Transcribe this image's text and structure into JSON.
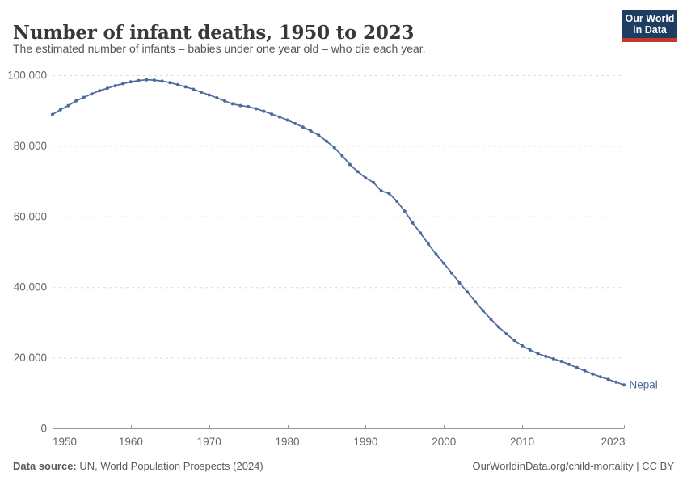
{
  "header": {
    "title": "Number of infant deaths, 1950 to 2023",
    "subtitle": "The estimated number of infants – babies under one year old – who die each year.",
    "logo": {
      "line1": "Our World",
      "line2": "in Data",
      "bg_color": "#1d3d63",
      "accent_color": "#c0392b"
    }
  },
  "footer": {
    "source_label": "Data source:",
    "source_text": " UN, World Population Prospects (2024)",
    "credit": "OurWorldinData.org/child-mortality | CC BY"
  },
  "chart_data": {
    "type": "line",
    "title": "Number of infant deaths, 1950 to 2023",
    "xlabel": "",
    "ylabel": "",
    "xlim": [
      1950,
      2024.5
    ],
    "ylim": [
      0,
      100000
    ],
    "grid": "horizontal-dashed",
    "legend": "end-of-line-label",
    "x_ticks": [
      1950,
      1960,
      1970,
      1980,
      1990,
      2000,
      2010,
      2023
    ],
    "y_ticks": [
      0,
      20000,
      40000,
      60000,
      80000,
      100000
    ],
    "y_tick_labels": [
      "0",
      "20,000",
      "40,000",
      "60,000",
      "80,000",
      "100,000"
    ],
    "series": [
      {
        "name": "Nepal",
        "color": "#4c6a9c",
        "years": [
          1950,
          1951,
          1952,
          1953,
          1954,
          1955,
          1956,
          1957,
          1958,
          1959,
          1960,
          1961,
          1962,
          1963,
          1964,
          1965,
          1966,
          1967,
          1968,
          1969,
          1970,
          1971,
          1972,
          1973,
          1974,
          1975,
          1976,
          1977,
          1978,
          1979,
          1980,
          1981,
          1982,
          1983,
          1984,
          1985,
          1986,
          1987,
          1988,
          1989,
          1990,
          1991,
          1992,
          1993,
          1994,
          1995,
          1996,
          1997,
          1998,
          1999,
          2000,
          2001,
          2002,
          2003,
          2004,
          2005,
          2006,
          2007,
          2008,
          2009,
          2010,
          2011,
          2012,
          2013,
          2014,
          2015,
          2016,
          2017,
          2018,
          2019,
          2020,
          2021,
          2022,
          2023
        ],
        "values": [
          88900,
          90200,
          91400,
          92700,
          93700,
          94700,
          95600,
          96300,
          97000,
          97600,
          98100,
          98500,
          98700,
          98600,
          98300,
          97900,
          97300,
          96700,
          96000,
          95200,
          94400,
          93600,
          92700,
          91900,
          91400,
          91100,
          90500,
          89800,
          89000,
          88200,
          87300,
          86300,
          85300,
          84200,
          83000,
          81300,
          79500,
          77200,
          74700,
          72700,
          70900,
          69600,
          67200,
          66500,
          64300,
          61500,
          58200,
          55300,
          52200,
          49300,
          46700,
          44000,
          41200,
          38600,
          35900,
          33300,
          30900,
          28700,
          26700,
          24900,
          23400,
          22200,
          21200,
          20400,
          19700,
          19000,
          18100,
          17200,
          16300,
          15400,
          14600,
          13900,
          13100,
          12300
        ]
      }
    ]
  }
}
